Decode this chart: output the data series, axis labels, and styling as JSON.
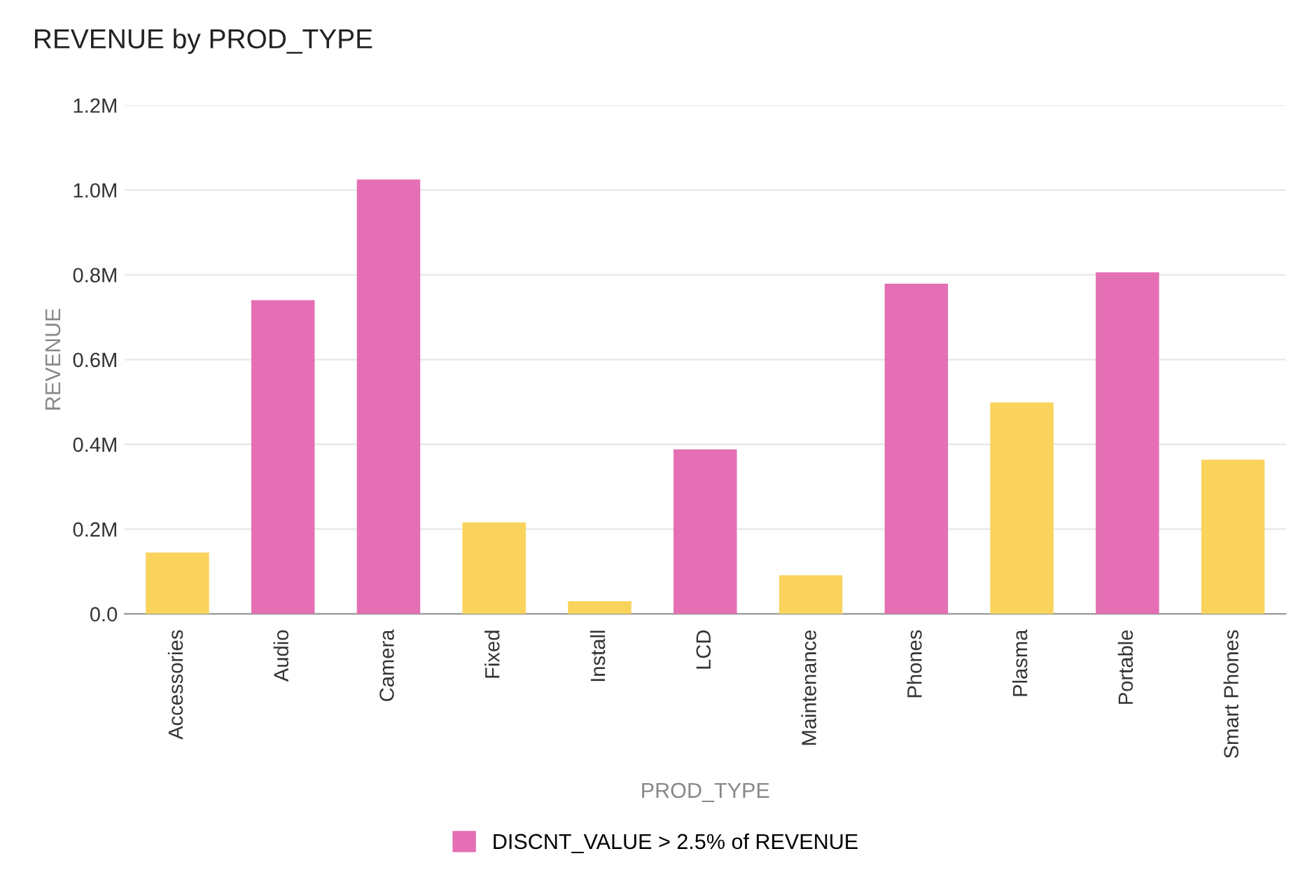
{
  "chart_data": {
    "type": "bar",
    "title": "REVENUE by PROD_TYPE",
    "xlabel": "PROD_TYPE",
    "ylabel": "REVENUE",
    "categories": [
      "Accessories",
      "Audio",
      "Camera",
      "Fixed",
      "Install",
      "LCD",
      "Maintenance",
      "Phones",
      "Plasma",
      "Portable",
      "Smart Phones"
    ],
    "series": [
      {
        "name": "DISCNT_VALUE > 2.5% of REVENUE",
        "color": "#e46fb4",
        "values": [
          null,
          740000,
          1025000,
          null,
          null,
          388000,
          null,
          779000,
          null,
          806000,
          null
        ]
      },
      {
        "color": "#f9d35c",
        "values": [
          145000,
          null,
          null,
          216000,
          30000,
          null,
          91000,
          null,
          499000,
          null,
          364000
        ]
      }
    ],
    "ylim": [
      0,
      1200000
    ],
    "yticks": [
      {
        "value": 0,
        "label": "0.0"
      },
      {
        "value": 200000,
        "label": "0.2M"
      },
      {
        "value": 400000,
        "label": "0.4M"
      },
      {
        "value": 600000,
        "label": "0.6M"
      },
      {
        "value": 800000,
        "label": "0.8M"
      },
      {
        "value": 1000000,
        "label": "1.0M"
      },
      {
        "value": 1200000,
        "label": "1.2M"
      }
    ],
    "grid": "y",
    "legend": "bottom"
  }
}
